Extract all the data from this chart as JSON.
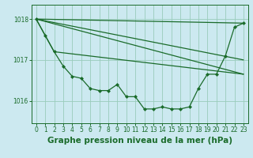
{
  "bg_color": "#cce9f0",
  "grid_color": "#99ccbb",
  "line_color": "#1a6b2a",
  "marker_color": "#1a6b2a",
  "xlabel": "Graphe pression niveau de la mer (hPa)",
  "xlabel_fontsize": 7.5,
  "tick_fontsize": 5.5,
  "yticks": [
    1016,
    1017,
    1018
  ],
  "ylim": [
    1015.45,
    1018.35
  ],
  "xlim": [
    -0.5,
    23.5
  ],
  "xticks": [
    0,
    1,
    2,
    3,
    4,
    5,
    6,
    7,
    8,
    9,
    10,
    11,
    12,
    13,
    14,
    15,
    16,
    17,
    18,
    19,
    20,
    21,
    22,
    23
  ],
  "main_x": [
    0,
    1,
    2,
    3,
    4,
    5,
    6,
    7,
    8,
    9,
    10,
    11,
    12,
    13,
    14,
    15,
    16,
    17,
    18,
    19,
    20,
    21,
    22,
    23
  ],
  "main_y": [
    1018.0,
    1017.6,
    1017.2,
    1016.85,
    1016.6,
    1016.55,
    1016.3,
    1016.25,
    1016.25,
    1016.4,
    1016.1,
    1016.1,
    1015.8,
    1015.8,
    1015.85,
    1015.8,
    1015.8,
    1015.85,
    1016.3,
    1016.65,
    1016.65,
    1017.1,
    1017.8,
    1017.9
  ],
  "fan_lines": [
    {
      "x": [
        0,
        23
      ],
      "y": [
        1018.0,
        1017.9
      ]
    },
    {
      "x": [
        0,
        23
      ],
      "y": [
        1018.0,
        1017.0
      ]
    },
    {
      "x": [
        0,
        23
      ],
      "y": [
        1018.0,
        1016.65
      ]
    },
    {
      "x": [
        0,
        2,
        23
      ],
      "y": [
        1018.0,
        1017.2,
        1016.65
      ]
    }
  ]
}
